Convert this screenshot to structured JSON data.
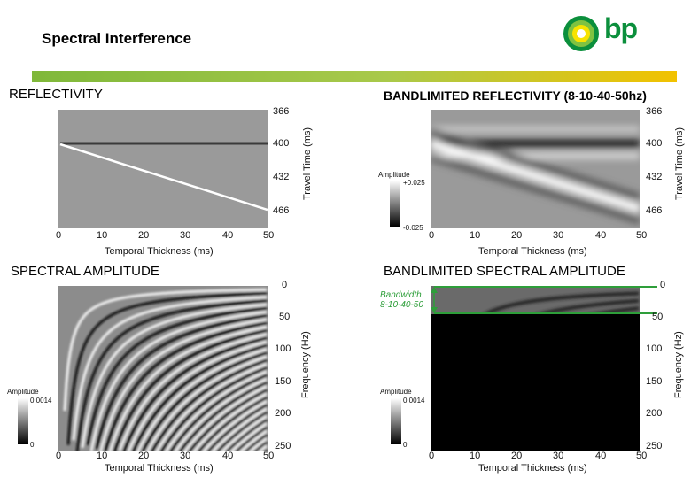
{
  "header": {
    "title": "Spectral Interference",
    "logo_text": "bp"
  },
  "sections": {
    "reflectivity": "REFLECTIVITY",
    "bandlimited_reflectivity": "BANDLIMITED REFLECTIVITY (8-10-40-50hz)",
    "spectral_amplitude": "SPECTRAL AMPLITUDE",
    "bandlimited_spectral_amplitude": "BANDLIMITED SPECTRAL AMPLITUDE"
  },
  "axes": {
    "x_title": "Temporal Thickness (ms)",
    "travel_time_title": "Travel Time (ms)",
    "frequency_title": "Frequency (Hz)",
    "x_ticks": [
      "0",
      "10",
      "20",
      "30",
      "40",
      "50"
    ],
    "time_ticks": [
      "366",
      "400",
      "432",
      "466"
    ],
    "freq_ticks": [
      "0",
      "50",
      "100",
      "150",
      "200",
      "250"
    ]
  },
  "colorbars": {
    "label": "Amplitude",
    "refl_max": "+0.025",
    "refl_min": "-0.025",
    "spec_max": "0.0014",
    "spec_min": "0"
  },
  "annotation": {
    "bandwidth_line1": "Bandwidth",
    "bandwidth_line2": "8-10-40-50"
  },
  "colors": {
    "band_green": "#7fb83a",
    "band_yellow": "#f2c200",
    "annotation_green": "#2e9e3a",
    "logo_green": "#0b8f3c"
  }
}
